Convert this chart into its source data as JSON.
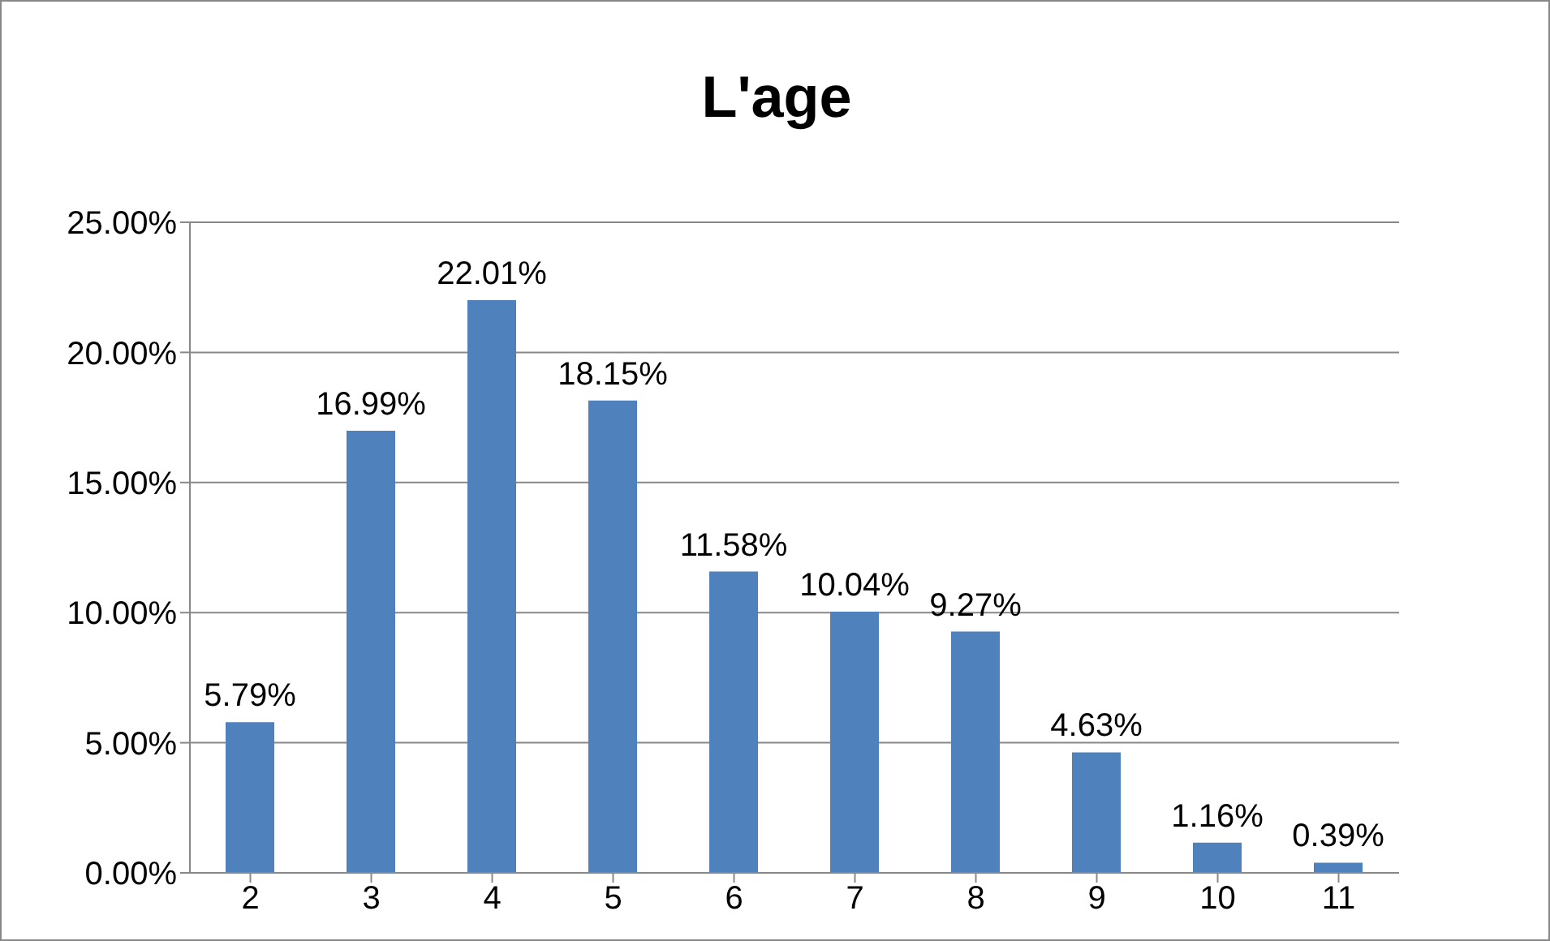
{
  "chart_data": {
    "type": "bar",
    "title": "L'age",
    "categories": [
      "2",
      "3",
      "4",
      "5",
      "6",
      "7",
      "8",
      "9",
      "10",
      "11"
    ],
    "values": [
      5.79,
      16.99,
      22.01,
      18.15,
      11.58,
      10.04,
      9.27,
      4.63,
      1.16,
      0.39
    ],
    "value_labels": [
      "5.79%",
      "16.99%",
      "22.01%",
      "18.15%",
      "11.58%",
      "10.04%",
      "9.27%",
      "4.63%",
      "1.16%",
      "0.39%"
    ],
    "color": "#4f81bd",
    "ylim": [
      0,
      25
    ],
    "yticks": [
      {
        "value": 0,
        "label": "0.00%"
      },
      {
        "value": 5,
        "label": "5.00%"
      },
      {
        "value": 10,
        "label": "10.00%"
      },
      {
        "value": 15,
        "label": "15.00%"
      },
      {
        "value": 20,
        "label": "20.00%"
      },
      {
        "value": 25,
        "label": "25.00%"
      }
    ],
    "grid": "y",
    "legend": false
  }
}
